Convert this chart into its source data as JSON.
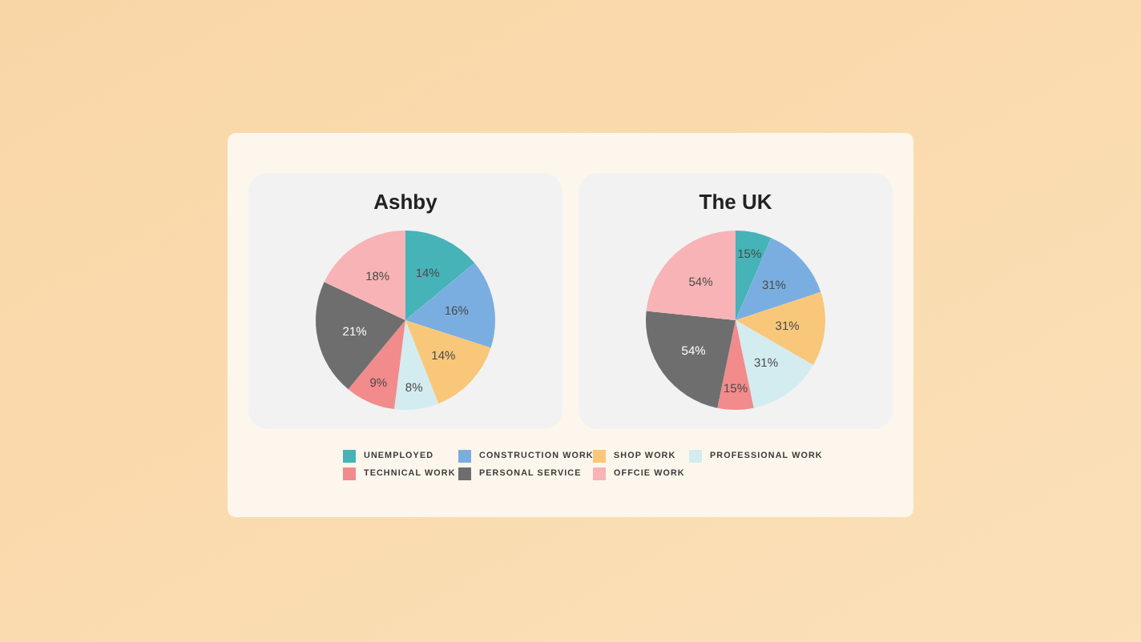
{
  "chart_data": {
    "type": "pie",
    "categories": [
      "UNEMPLOYED",
      "CONSTRUCTION WORK",
      "SHOP WORK",
      "PROFESSIONAL WORK",
      "TECHNICAL WORK",
      "PERSONAL SERVICE",
      "OFFCIE WORK"
    ],
    "colors": [
      "#45b3b8",
      "#7aaee0",
      "#f9c77a",
      "#d3ecef",
      "#f28b8b",
      "#6e6e6e",
      "#f7b3b5"
    ],
    "series": [
      {
        "name": "Ashby",
        "values": [
          14,
          16,
          14,
          8,
          9,
          21,
          18
        ],
        "value_labels": [
          "14%",
          "16%",
          "14%",
          "8%",
          "9%",
          "21%",
          "18%"
        ]
      },
      {
        "name": "The UK",
        "values": [
          15,
          31,
          31,
          31,
          15,
          54,
          54
        ],
        "value_labels": [
          "15%",
          "31%",
          "31%",
          "31%",
          "15%",
          "54%",
          "54%"
        ]
      }
    ],
    "legend": "bottom"
  }
}
